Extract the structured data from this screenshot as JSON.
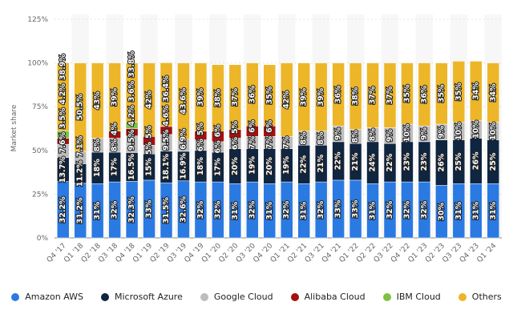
{
  "chart_data": {
    "type": "bar",
    "stacked": true,
    "ylabel": "Market share",
    "ylim": [
      0,
      125
    ],
    "yticks": [
      "0%",
      "25%",
      "50%",
      "75%",
      "100%",
      "125%"
    ],
    "categories": [
      "Q4 '17",
      "Q1 '18",
      "Q2 '18",
      "Q3 '18",
      "Q4 '18",
      "Q1 '19",
      "Q2 '19",
      "Q3 '19",
      "Q4 '19",
      "Q1 '20",
      "Q2 '20",
      "Q3 '20",
      "Q4 '20",
      "Q1 '21",
      "Q2 '21",
      "Q3 '21",
      "Q4 '21",
      "Q1 '22",
      "Q2 '22",
      "Q3 '22",
      "Q4 '22",
      "Q1 '23",
      "Q2 '23",
      "Q3 '23",
      "Q4 '23",
      "Q1 '24"
    ],
    "series": [
      {
        "name": "Amazon AWS",
        "color": "#2a7ae2",
        "values": [
          32.2,
          31.2,
          31,
          32,
          32.3,
          33,
          31.5,
          32.6,
          32,
          32,
          31,
          32,
          31,
          32,
          31,
          32,
          33,
          33,
          31,
          32,
          32,
          32,
          30,
          31,
          31,
          31
        ]
      },
      {
        "name": "Microsoft Azure",
        "color": "#0f2540",
        "values": [
          13.7,
          11.2,
          18,
          17,
          16.5,
          15,
          18.1,
          16.9,
          18,
          17,
          20,
          19,
          20,
          19,
          22,
          21,
          22,
          21,
          24,
          22,
          23,
          23,
          26,
          25,
          26,
          25
        ]
      },
      {
        "name": "Google Cloud",
        "color": "#bdbdbd",
        "values": [
          7.6,
          7.1,
          8,
          8,
          9.5,
          5,
          9.5,
          6.9,
          6,
          6,
          6,
          7,
          7,
          7,
          8,
          8,
          9,
          8,
          8,
          9,
          10,
          9,
          9,
          10,
          10,
          10
        ]
      },
      {
        "name": "Alibaba Cloud",
        "color": "#a50f0f",
        "values": [
          3.5,
          null,
          null,
          4,
          4.2,
          5,
          4.6,
          null,
          5,
          6,
          5,
          6,
          6,
          null,
          null,
          null,
          null,
          null,
          null,
          null,
          null,
          null,
          null,
          null,
          null,
          null
        ]
      },
      {
        "name": "IBM Cloud",
        "color": "#7cc242",
        "values": [
          4.2,
          null,
          null,
          null,
          3.6,
          null,
          null,
          null,
          null,
          null,
          null,
          null,
          null,
          null,
          null,
          null,
          null,
          null,
          null,
          null,
          null,
          null,
          null,
          null,
          null,
          null
        ]
      },
      {
        "name": "Others",
        "color": "#ecb628",
        "values": [
          38.9,
          50.5,
          43,
          39,
          33.8,
          42,
          36.4,
          43.6,
          39,
          38,
          37,
          36,
          35,
          42,
          39,
          39,
          36,
          38,
          37,
          37,
          35,
          36,
          35,
          35,
          34,
          34
        ]
      }
    ]
  }
}
